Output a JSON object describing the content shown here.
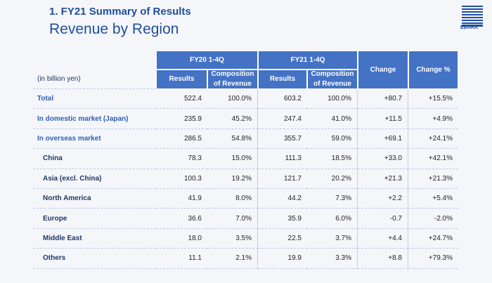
{
  "header": {
    "section": "1. FY21 Summary of Results",
    "title": "Revenue by Region",
    "logo": "EBARA"
  },
  "table": {
    "unit": "(in billion yen)",
    "groups": [
      "FY20 1-4Q",
      "FY21 1-4Q"
    ],
    "subheaders": [
      "Results",
      "Composition of Revenue",
      "Results",
      "Composition of Revenue"
    ],
    "change_headers": [
      "Change",
      "Change %"
    ],
    "rows": [
      [
        "Total",
        "522.4",
        "100.0%",
        "603.2",
        "100.0%",
        "+80.7",
        "+15.5%"
      ],
      [
        "In domestic market (Japan)",
        "235.9",
        "45.2%",
        "247.4",
        "41.0%",
        "+11.5",
        "+4.9%"
      ],
      [
        "In overseas market",
        "286.5",
        "54.8%",
        "355.7",
        "59.0%",
        "+69.1",
        "+24.1%"
      ],
      [
        "China",
        "78.3",
        "15.0%",
        "111.3",
        "18.5%",
        "+33.0",
        "+42.1%"
      ],
      [
        "Asia (excl. China)",
        "100.3",
        "19.2%",
        "121.7",
        "20.2%",
        "+21.3",
        "+21.3%"
      ],
      [
        "North America",
        "41.9",
        "8.0%",
        "44.2",
        "7.3%",
        "+2.2",
        "+5.4%"
      ],
      [
        "Europe",
        "36.6",
        "7.0%",
        "35.9",
        "6.0%",
        "-0.7",
        "-2.0%"
      ],
      [
        "Middle East",
        "18.0",
        "3.5%",
        "22.5",
        "3.7%",
        "+4.4",
        "+24.7%"
      ],
      [
        "Others",
        "11.1",
        "2.1%",
        "19.9",
        "3.3%",
        "+8.8",
        "+79.3%"
      ]
    ]
  }
}
